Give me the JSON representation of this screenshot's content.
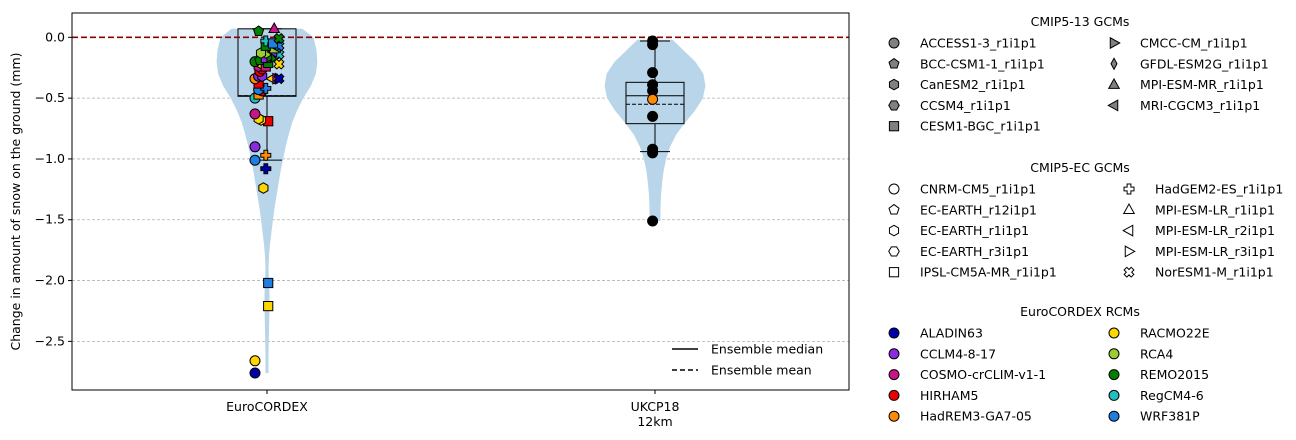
{
  "chart_data": {
    "type": "violin",
    "ylabel": "Change in amount of snow on the ground (mm)",
    "ylim": [
      -2.9,
      0.2
    ],
    "yticks": [
      0.0,
      -0.5,
      -1.0,
      -1.5,
      -2.0,
      -2.5
    ],
    "ytick_labels": [
      "0.0",
      "−0.5",
      "−1.0",
      "−1.5",
      "−2.0",
      "−2.5"
    ],
    "grid": "y dashed",
    "zero_line": {
      "value": 0.0,
      "color": "#8b0000",
      "style": "dashed"
    },
    "categories": [
      {
        "label_lines": [
          "EuroCORDEX"
        ]
      },
      {
        "label_lines": [
          "UKCP18",
          "12km"
        ]
      }
    ],
    "violin_color": "#b9d5ea",
    "violins": [
      {
        "category": 0,
        "max": 0.07,
        "min": -2.76,
        "profile": [
          [
            0.07,
            0.7
          ],
          [
            0.0,
            0.92
          ],
          [
            -0.1,
            0.98
          ],
          [
            -0.2,
            1.0
          ],
          [
            -0.3,
            0.97
          ],
          [
            -0.4,
            0.87
          ],
          [
            -0.5,
            0.72
          ],
          [
            -0.6,
            0.6
          ],
          [
            -0.7,
            0.5
          ],
          [
            -0.8,
            0.43
          ],
          [
            -0.9,
            0.37
          ],
          [
            -1.0,
            0.32
          ],
          [
            -1.1,
            0.27
          ],
          [
            -1.2,
            0.23
          ],
          [
            -1.3,
            0.19
          ],
          [
            -1.4,
            0.15
          ],
          [
            -1.5,
            0.12
          ],
          [
            -1.6,
            0.09
          ],
          [
            -1.7,
            0.06
          ],
          [
            -1.8,
            0.04
          ],
          [
            -1.9,
            0.03
          ],
          [
            -2.0,
            0.04
          ],
          [
            -2.1,
            0.05
          ],
          [
            -2.2,
            0.05
          ],
          [
            -2.3,
            0.045
          ],
          [
            -2.4,
            0.04
          ],
          [
            -2.5,
            0.035
          ],
          [
            -2.6,
            0.03
          ],
          [
            -2.7,
            0.03
          ],
          [
            -2.76,
            0.03
          ]
        ],
        "half_width_max": 0.42,
        "box": {
          "q1": -0.485,
          "median": -0.48,
          "mean": -0.48,
          "q3": 0.07,
          "whisker_low": -1.01,
          "whisker_high": 0.07
        }
      },
      {
        "category": 1,
        "max": -0.02,
        "min": -1.51,
        "profile": [
          [
            -0.02,
            0.35
          ],
          [
            -0.1,
            0.55
          ],
          [
            -0.2,
            0.8
          ],
          [
            -0.3,
            0.96
          ],
          [
            -0.4,
            1.0
          ],
          [
            -0.5,
            0.95
          ],
          [
            -0.6,
            0.8
          ],
          [
            -0.7,
            0.6
          ],
          [
            -0.8,
            0.42
          ],
          [
            -0.9,
            0.3
          ],
          [
            -1.0,
            0.22
          ],
          [
            -1.1,
            0.17
          ],
          [
            -1.2,
            0.14
          ],
          [
            -1.3,
            0.12
          ],
          [
            -1.4,
            0.11
          ],
          [
            -1.51,
            0.11
          ]
        ],
        "half_width_max": 0.42,
        "box": {
          "q1": -0.71,
          "median": -0.48,
          "mean": -0.55,
          "q3": -0.37,
          "whisker_low": -0.94,
          "whisker_high": -0.03
        }
      }
    ],
    "points": [
      {
        "cat": 0,
        "dx": -0.1,
        "y": -2.76,
        "m": "circle",
        "c": "#0000aa"
      },
      {
        "cat": 0,
        "dx": -0.1,
        "y": -2.66,
        "m": "circle",
        "c": "#ffd700"
      },
      {
        "cat": 0,
        "dx": 0.01,
        "y": -2.21,
        "m": "square",
        "c": "#ffd700"
      },
      {
        "cat": 0,
        "dx": 0.01,
        "y": -2.02,
        "m": "square",
        "c": "#1e7fe0"
      },
      {
        "cat": 0,
        "dx": -0.03,
        "y": -1.24,
        "m": "hexagon",
        "c": "#ffd700"
      },
      {
        "cat": 0,
        "dx": -0.01,
        "y": -1.08,
        "m": "plus",
        "c": "#0000aa"
      },
      {
        "cat": 0,
        "dx": -0.1,
        "y": -1.01,
        "m": "circle",
        "c": "#1e7fe0"
      },
      {
        "cat": 0,
        "dx": -0.01,
        "y": -0.97,
        "m": "plus",
        "c": "#ff8c00"
      },
      {
        "cat": 0,
        "dx": -0.1,
        "y": -0.9,
        "m": "circle",
        "c": "#8a2be2"
      },
      {
        "cat": 0,
        "dx": 0.01,
        "y": -0.69,
        "m": "square",
        "c": "#ee0000"
      },
      {
        "cat": 0,
        "dx": -0.05,
        "y": -0.68,
        "m": "hexagon",
        "c": "#ffd700"
      },
      {
        "cat": 0,
        "dx": -0.07,
        "y": -0.67,
        "m": "hexagon",
        "c": "#ffd700"
      },
      {
        "cat": 0,
        "dx": -0.1,
        "y": -0.63,
        "m": "circle",
        "c": "#c71585"
      },
      {
        "cat": 0,
        "dx": -0.1,
        "y": -0.5,
        "m": "circle",
        "c": "#20c0c0"
      },
      {
        "cat": 0,
        "dx": -0.07,
        "y": -0.47,
        "m": "square",
        "c": "#ff8c00"
      },
      {
        "cat": 0,
        "dx": -0.04,
        "y": -0.44,
        "m": "circle",
        "c": "#ee0000"
      },
      {
        "cat": 0,
        "dx": -0.07,
        "y": -0.43,
        "m": "circle",
        "c": "#1e7fe0"
      },
      {
        "cat": 0,
        "dx": -0.01,
        "y": -0.42,
        "m": "plus",
        "c": "#1e7fe0"
      },
      {
        "cat": 0,
        "dx": -0.07,
        "y": -0.38,
        "m": "square",
        "c": "#ee0000"
      },
      {
        "cat": 0,
        "dx": -0.1,
        "y": -0.34,
        "m": "circle",
        "c": "#ff8c00"
      },
      {
        "cat": 0,
        "dx": -0.07,
        "y": -0.32,
        "m": "circle",
        "c": "#8a2be2"
      },
      {
        "cat": 0,
        "dx": 0.04,
        "y": -0.34,
        "m": "tri_left",
        "c": "#ffd700"
      },
      {
        "cat": 0,
        "dx": 0.08,
        "y": -0.34,
        "m": "tri_right",
        "c": "#c71585"
      },
      {
        "cat": 0,
        "dx": 0.1,
        "y": -0.34,
        "m": "cross",
        "c": "#0000aa"
      },
      {
        "cat": 0,
        "dx": -0.04,
        "y": -0.32,
        "m": "hexagon",
        "c": "#8a2be2"
      },
      {
        "cat": 0,
        "dx": -0.06,
        "y": -0.28,
        "m": "circle",
        "c": "#ee0000"
      },
      {
        "cat": 0,
        "dx": -0.04,
        "y": -0.26,
        "m": "circle",
        "c": "#ee0000"
      },
      {
        "cat": 0,
        "dx": -0.07,
        "y": -0.24,
        "m": "hexagon",
        "c": "#c71585"
      },
      {
        "cat": 0,
        "dx": -0.04,
        "y": -0.22,
        "m": "hexagon",
        "c": "#ffd700"
      },
      {
        "cat": 0,
        "dx": -0.01,
        "y": -0.24,
        "m": "square",
        "c": "#c71585"
      },
      {
        "cat": 0,
        "dx": 0.01,
        "y": -0.21,
        "m": "square",
        "c": "#008000"
      },
      {
        "cat": 0,
        "dx": 0.1,
        "y": -0.22,
        "m": "cross",
        "c": "#ffd700"
      },
      {
        "cat": 0,
        "dx": -0.1,
        "y": -0.2,
        "m": "circle",
        "c": "#008000"
      },
      {
        "cat": 0,
        "dx": -0.06,
        "y": -0.19,
        "m": "pentagon",
        "c": "#008000"
      },
      {
        "cat": 0,
        "dx": -0.01,
        "y": -0.17,
        "m": "square",
        "c": "#8a2be2"
      },
      {
        "cat": 0,
        "dx": 0.03,
        "y": -0.16,
        "m": "tri_right",
        "c": "#008000"
      },
      {
        "cat": 0,
        "dx": 0.07,
        "y": -0.16,
        "m": "tri_right",
        "c": "#008000"
      },
      {
        "cat": 0,
        "dx": 0.1,
        "y": -0.14,
        "m": "cross",
        "c": "#20c0c0"
      },
      {
        "cat": 0,
        "dx": -0.01,
        "y": -0.13,
        "m": "hexagon",
        "c": "#9acd32"
      },
      {
        "cat": 0,
        "dx": -0.05,
        "y": -0.13,
        "m": "hexagon",
        "c": "#9acd32"
      },
      {
        "cat": 0,
        "dx": 0.05,
        "y": -0.12,
        "m": "tri_left",
        "c": "#8a2be2"
      },
      {
        "cat": 0,
        "dx": 0.06,
        "y": -0.09,
        "m": "square",
        "c": "#9acd32"
      },
      {
        "cat": 0,
        "dx": 0.08,
        "y": -0.08,
        "m": "tri_left",
        "c": "#1e7fe0"
      },
      {
        "cat": 0,
        "dx": 0.1,
        "y": -0.07,
        "m": "cross",
        "c": "#1e7fe0"
      },
      {
        "cat": 0,
        "dx": -0.07,
        "y": 0.05,
        "m": "pentagon",
        "c": "#008000"
      },
      {
        "cat": 0,
        "dx": -0.01,
        "y": -0.07,
        "m": "square",
        "c": "#008000"
      },
      {
        "cat": 0,
        "dx": -0.01,
        "y": -0.03,
        "m": "plus",
        "c": "#20c0c0"
      },
      {
        "cat": 0,
        "dx": 0.05,
        "y": -0.05,
        "m": "square",
        "c": "#1e7fe0"
      },
      {
        "cat": 0,
        "dx": 0.1,
        "y": -0.01,
        "m": "cross",
        "c": "#008000"
      },
      {
        "cat": 0,
        "dx": 0.06,
        "y": 0.07,
        "m": "triangle",
        "c": "#c71585"
      },
      {
        "cat": 1,
        "dx": -0.02,
        "y": -0.03,
        "m": "circle",
        "c": "#000000"
      },
      {
        "cat": 1,
        "dx": -0.02,
        "y": -0.06,
        "m": "circle",
        "c": "#000000"
      },
      {
        "cat": 1,
        "dx": -0.02,
        "y": -0.29,
        "m": "circle",
        "c": "#000000"
      },
      {
        "cat": 1,
        "dx": -0.02,
        "y": -0.39,
        "m": "circle",
        "c": "#000000"
      },
      {
        "cat": 1,
        "dx": -0.02,
        "y": -0.44,
        "m": "circle",
        "c": "#000000"
      },
      {
        "cat": 1,
        "dx": -0.02,
        "y": -0.51,
        "m": "circle",
        "c": "#ff8c00"
      },
      {
        "cat": 1,
        "dx": -0.02,
        "y": -0.65,
        "m": "circle",
        "c": "#000000"
      },
      {
        "cat": 1,
        "dx": -0.02,
        "y": -0.92,
        "m": "circle",
        "c": "#000000"
      },
      {
        "cat": 1,
        "dx": -0.02,
        "y": -0.95,
        "m": "circle",
        "c": "#000000"
      },
      {
        "cat": 1,
        "dx": -0.02,
        "y": -1.51,
        "m": "circle",
        "c": "#000000"
      }
    ],
    "inner_legend": {
      "placement": "lower-right",
      "entries": [
        {
          "label": "Ensemble median",
          "style": "solid"
        },
        {
          "label": "Ensemble mean",
          "style": "dashed"
        }
      ]
    },
    "legend_groups": [
      {
        "title": "CMIP5-13 GCMs",
        "fill": "#808080",
        "columns": [
          [
            {
              "label": "ACCESS1-3_r1i1p1",
              "marker": "circle"
            },
            {
              "label": "BCC-CSM1-1_r1i1p1",
              "marker": "pentagon"
            },
            {
              "label": "CanESM2_r1i1p1",
              "marker": "hexagon"
            },
            {
              "label": "CCSM4_r1i1p1",
              "marker": "hexagon2"
            },
            {
              "label": "CESM1-BGC_r1i1p1",
              "marker": "square"
            }
          ],
          [
            {
              "label": "CMCC-CM_r1i1p1",
              "marker": "tri_right"
            },
            {
              "label": "GFDL-ESM2G_r1i1p1",
              "marker": "thin_diamond"
            },
            {
              "label": "MPI-ESM-MR_r1i1p1",
              "marker": "triangle"
            },
            {
              "label": "MRI-CGCM3_r1i1p1",
              "marker": "tri_left"
            }
          ]
        ]
      },
      {
        "title": "CMIP5-EC GCMs",
        "fill": "#ffffff",
        "columns": [
          [
            {
              "label": "CNRM-CM5_r1i1p1",
              "marker": "circle"
            },
            {
              "label": "EC-EARTH_r12i1p1",
              "marker": "pentagon"
            },
            {
              "label": "EC-EARTH_r1i1p1",
              "marker": "hexagon"
            },
            {
              "label": "EC-EARTH_r3i1p1",
              "marker": "hexagon2"
            },
            {
              "label": "IPSL-CM5A-MR_r1i1p1",
              "marker": "square"
            }
          ],
          [
            {
              "label": "HadGEM2-ES_r1i1p1",
              "marker": "plus"
            },
            {
              "label": "MPI-ESM-LR_r1i1p1",
              "marker": "triangle"
            },
            {
              "label": "MPI-ESM-LR_r2i1p1",
              "marker": "tri_left"
            },
            {
              "label": "MPI-ESM-LR_r3i1p1",
              "marker": "tri_right"
            },
            {
              "label": "NorESM1-M_r1i1p1",
              "marker": "cross"
            }
          ]
        ]
      },
      {
        "title": "EuroCORDEX RCMs",
        "columns": [
          [
            {
              "label": "ALADIN63",
              "marker": "circle",
              "color": "#0000aa"
            },
            {
              "label": "CCLM4-8-17",
              "marker": "circle",
              "color": "#8a2be2"
            },
            {
              "label": "COSMO-crCLIM-v1-1",
              "marker": "circle",
              "color": "#c71585"
            },
            {
              "label": "HIRHAM5",
              "marker": "circle",
              "color": "#ee0000"
            },
            {
              "label": "HadREM3-GA7-05",
              "marker": "circle",
              "color": "#ff8c00"
            }
          ],
          [
            {
              "label": "RACMO22E",
              "marker": "circle",
              "color": "#ffd700"
            },
            {
              "label": "RCA4",
              "marker": "circle",
              "color": "#9acd32"
            },
            {
              "label": "REMO2015",
              "marker": "circle",
              "color": "#008000"
            },
            {
              "label": "RegCM4-6",
              "marker": "circle",
              "color": "#20c0c0"
            },
            {
              "label": "WRF381P",
              "marker": "circle",
              "color": "#1e7fe0"
            }
          ]
        ]
      }
    ]
  }
}
